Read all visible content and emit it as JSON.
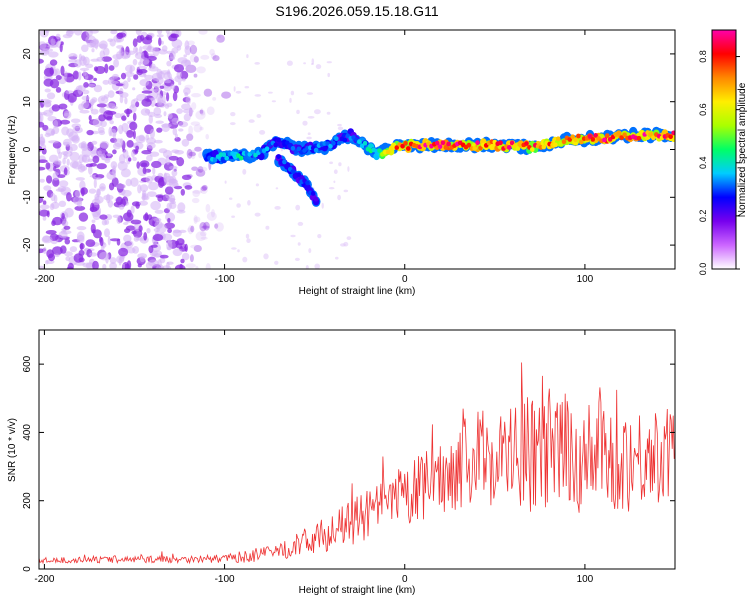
{
  "chart_data": [
    {
      "type": "heatmap",
      "title": "S196.2026.059.15.18.G11",
      "xlabel": "Height of straight line (km)",
      "ylabel": "Frequency (Hz)",
      "xlim": [
        -203,
        150
      ],
      "ylim": [
        -25,
        25
      ],
      "xticks": [
        -200,
        -100,
        0,
        100
      ],
      "yticks": [
        -20,
        -10,
        0,
        10,
        20
      ],
      "colorbar": {
        "label": "Normalized spectral amplitude",
        "range": [
          0,
          0.9
        ],
        "ticks": [
          0.0,
          0.2,
          0.4,
          0.6,
          0.8
        ],
        "colormap": [
          "#ffffff",
          "#cc66ff",
          "#7700ee",
          "#0000ff",
          "#00ccff",
          "#00ff66",
          "#aaff00",
          "#ffee00",
          "#ff8800",
          "#ff0000",
          "#ff00aa"
        ]
      },
      "noise_region": {
        "x_range": [
          -203,
          -105
        ],
        "freq_range": [
          -25,
          25
        ],
        "amplitude": 0.12
      },
      "signal_ridge": [
        {
          "x": -110,
          "freq": -1.5,
          "amp": 0.35
        },
        {
          "x": -95,
          "freq": -1.5,
          "amp": 0.4
        },
        {
          "x": -80,
          "freq": -1.0,
          "amp": 0.35
        },
        {
          "x": -70,
          "freq": 2.0,
          "amp": 0.28
        },
        {
          "x": -60,
          "freq": 0.0,
          "amp": 0.3
        },
        {
          "x": -45,
          "freq": 0.5,
          "amp": 0.32
        },
        {
          "x": -30,
          "freq": 3.0,
          "amp": 0.3
        },
        {
          "x": -15,
          "freq": -1.0,
          "amp": 0.45
        },
        {
          "x": -5,
          "freq": 0.5,
          "amp": 0.75
        },
        {
          "x": 10,
          "freq": 1.0,
          "amp": 0.85
        },
        {
          "x": 30,
          "freq": 0.8,
          "amp": 0.8
        },
        {
          "x": 50,
          "freq": 1.0,
          "amp": 0.78
        },
        {
          "x": 70,
          "freq": 0.5,
          "amp": 0.75
        },
        {
          "x": 90,
          "freq": 2.0,
          "amp": 0.7
        },
        {
          "x": 110,
          "freq": 2.5,
          "amp": 0.88
        },
        {
          "x": 130,
          "freq": 3.0,
          "amp": 0.8
        },
        {
          "x": 150,
          "freq": 3.0,
          "amp": 0.75
        }
      ],
      "branch": [
        {
          "x": -70,
          "freq": -2.0,
          "amp": 0.3
        },
        {
          "x": -55,
          "freq": -7.0,
          "amp": 0.3
        },
        {
          "x": -48,
          "freq": -11.0,
          "amp": 0.25
        }
      ]
    },
    {
      "type": "line",
      "xlabel": "Height of straight line (km)",
      "ylabel": "SNR (10 * v/v)",
      "xlim": [
        -203,
        150
      ],
      "ylim": [
        0,
        700
      ],
      "xticks": [
        -200,
        -100,
        0,
        100
      ],
      "yticks": [
        0,
        200,
        400,
        600
      ],
      "series": [
        {
          "name": "SNR",
          "color": "#ee3333",
          "x": [
            -203,
            -150,
            -100,
            -75,
            -60,
            -40,
            -20,
            0,
            20,
            40,
            60,
            80,
            100,
            120,
            150
          ],
          "values": [
            25,
            28,
            30,
            45,
            70,
            110,
            160,
            210,
            270,
            330,
            330,
            340,
            330,
            320,
            340
          ],
          "fluctuation": [
            8,
            10,
            12,
            25,
            35,
            55,
            75,
            95,
            110,
            140,
            160,
            190,
            170,
            160,
            130
          ]
        }
      ]
    }
  ]
}
